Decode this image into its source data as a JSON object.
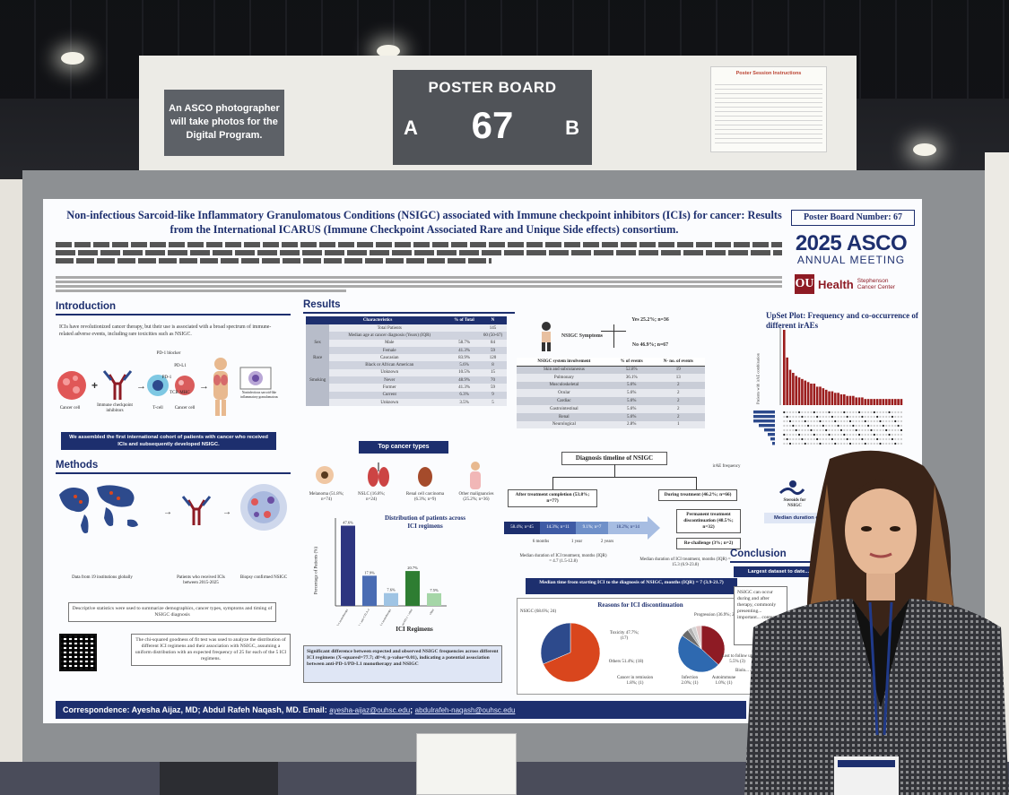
{
  "sign": {
    "photo_note": "An ASCO photographer will take photos for the Digital Program.",
    "board_title": "POSTER BOARD",
    "board_number": "67",
    "side_a": "A",
    "side_b": "B",
    "instructions_title": "Poster Session Instructions"
  },
  "poster": {
    "title": "Non-infectious Sarcoid-like Inflammatory Granulomatous Conditions (NSIGC) associated with Immune checkpoint inhibitors (ICIs) for cancer: Results from the International ICARUS (Immune Checkpoint Associated Rare and Unique Side effects) consortium.",
    "board_number_label": "Poster Board Number: 67",
    "asco_year": "2025",
    "asco_name": "ASCO",
    "asco_meeting": "ANNUAL MEETING",
    "ou_mark": "OU",
    "ou_health": "Health",
    "ou_center": "Stephenson Cancer Center",
    "intro_head": "Introduction",
    "intro_text": "ICIs have revolutionized cancer therapy, but their use is associated with a broad spectrum of immune-related adverse events, including rare toxicities such as NSIGC.",
    "intro_labels": {
      "cancer_cell": "Cancer cell",
      "icis": "Immune checkpoint inhibitors",
      "tcell": "T-cell",
      "cancer_cell2": "Cancer cell",
      "pd1_blocker": "PD-1 blocker",
      "pd1": "PD-1",
      "pdl1": "PD-L1",
      "tcr": "TCR",
      "mhc": "MHC",
      "granuloma": "Noninfectious sarcoid-like inflammatory granulomatous"
    },
    "intro_banner": "We assembled the first international cohort of patients with cancer who received ICIs and subsequently developed NSIGC.",
    "methods_head": "Methods",
    "methods_labels": {
      "data": "Data from 19 institutions globally",
      "patients": "Patients who received ICIs between 2015-2025",
      "biopsy": "Biopsy confirmed NSIGC"
    },
    "methods_desc": "Descriptive statistics were used to summarize demographics, cancer types, symptoms and timing of NSIGC diagnosis",
    "methods_chi": "The chi-squared goodness of fit test was used to analyze the distribution of different ICI regimens and their association with NSIGC, assuming a uniform distribution with an expected frequency of 25 for each of the 5 ICI regimens.",
    "results_head": "Results",
    "table1": {
      "headers": [
        "Characteristics",
        "% of Total",
        "N"
      ],
      "rows": [
        [
          "",
          "Total Patients",
          "",
          "145"
        ],
        [
          "",
          "Median age at cancer diagnosis (Years) (IQR)",
          "",
          "60 (50-67)"
        ],
        [
          "Sex",
          "Male",
          "58.7%",
          "84"
        ],
        [
          "",
          "Female",
          "41.3%",
          "59"
        ],
        [
          "Race",
          "Caucasian",
          "83.9%",
          "120"
        ],
        [
          "",
          "Black or African American",
          "5.6%",
          "8"
        ],
        [
          "",
          "Unknown",
          "10.5%",
          "15"
        ],
        [
          "Smoking",
          "Never",
          "48.9%",
          "70"
        ],
        [
          "",
          "Former",
          "41.3%",
          "59"
        ],
        [
          "",
          "Current",
          "6.3%",
          "9"
        ],
        [
          "",
          "Unknown",
          "3.5%",
          "5"
        ]
      ]
    },
    "top_cancer_head": "Top cancer types",
    "cancers": [
      "Melanoma (51.8%; n=74)",
      "NSLC (16.8%; n=24)",
      "Renal cell carcinoma (6.3%; n=9)",
      "Other malignancies (25.2%; n=36)"
    ],
    "symptoms_label": "NSIGC Symptoms",
    "symptoms_yes": "Yes 25.2%; n=36",
    "symptoms_no": "No 46.9%; n=67",
    "table2": {
      "headers": [
        "NSIGC system involvement",
        "% of events",
        "N- no. of events"
      ],
      "rows": [
        [
          "Skin and subcutaneous",
          "52.8%",
          "19"
        ],
        [
          "Pulmonary",
          "36.1%",
          "13"
        ],
        [
          "Musculoskeletal",
          "5.6%",
          "2"
        ],
        [
          "Ocular",
          "5.6%",
          "2"
        ],
        [
          "Cardiac",
          "5.6%",
          "2"
        ],
        [
          "Gastrointestinal",
          "5.6%",
          "2"
        ],
        [
          "Renal",
          "5.6%",
          "2"
        ],
        [
          "Neurological",
          "2.8%",
          "1"
        ]
      ]
    },
    "timeline_head": "Diagnosis timeline of NSIGC",
    "after_treatment": "After treatment completion (53.8%; n=77)",
    "during_treatment": "During treatment (46.2%; n=66)",
    "timeline_segments": [
      "58.4%; n=45",
      "14.3%; n=11",
      "9.1%; n=7",
      "18.2%; n=14"
    ],
    "timeline_ticks": [
      "6 months",
      "1 year",
      "2 years"
    ],
    "after_median": "Median duration of ICI treatment, months (IQR) = 4.7 (1.5-12.8)",
    "during_median": "Median duration of ICI treatment, months (IQR) = 15.3 (6.9-23.8)",
    "permanent": "Permanent treatment discontinuation (48.5%; n=32)",
    "rechallenge": "Re-challenge (3%; n=2)",
    "median_time": "Median time from starting ICI to the diagnosis of NSIGC, months (IQR) = 7 (3.9-21.7)",
    "reasons_head": "Reasons for ICI discontinuation",
    "reasons_labels": [
      "NSIGC (68.6%; 24)",
      "Progression (36.9%; 24)",
      "Toxicity 47.7%; (17)",
      "Others 51.4%; (18)",
      "Lost to follow up 5.5% (3)",
      "Infection 2.0%; (1)",
      "Autoimmune 1.0%; (1)",
      "Cancer in remission 1.8%; (1)"
    ],
    "dist_title": "Distribution of patients across ICI regimens",
    "dist_ylabel": "Percentage of Patients (%)",
    "dist_xlabel": "ICI Regimens",
    "significance": "Significant difference between expected and observed NSIGC frequencies across different ICI regimens (X-squared=77.7; df=4; p-value=0.01), indicating a potential association between anti-PD-1/PD-L1 monotherapy and NSIGC",
    "upset_title": "UpSet Plot: Frequency and co-occurrence of different irAEs",
    "upset_ylabel": "Patients with irAE combination",
    "upset_xlabel": "irAE frequency",
    "steroids": "Steroids for NSIGC",
    "steroid_median": "Median duration of steroids, months (IQR) = 1.91 (0.9-...)",
    "conclusion_head": "Conclusion",
    "conclusion_first": "Largest dataset to date...",
    "conclusion_text": "NSIGC can occur during and after therapy, commonly presenting... important... context...",
    "conclusion_trunc": "Biolo... ...",
    "footer_text": "Correspondence: Ayesha Aijaz, MD; Abdul Rafeh Naqash, MD.  Email: ",
    "footer_email1": "ayesha-aijaz@ouhsc.edu",
    "footer_sep": "; ",
    "footer_email2": "abdulrafeh-naqash@ouhsc.edu"
  },
  "chart_data": [
    {
      "type": "bar",
      "title": "Distribution of patients across ICI regimens",
      "xlabel": "ICI Regimens",
      "ylabel": "Percentage of Patients (%)",
      "categories": [
        "Anti-PD-1 monotherapy",
        "Anti-PD-1 + anti-CTLA-4",
        "Anti-PD-L1 monotherapy",
        "Anti-PD-1 + other",
        "Other"
      ],
      "values": [
        47.6,
        17.9,
        7.6,
        20.7,
        7.5
      ],
      "value_labels": [
        "47.6%",
        "17.9%",
        "7.6%",
        "20.7%",
        "7.5%"
      ],
      "colors": [
        "#2d3580",
        "#4a6cb3",
        "#9fc4e4",
        "#2e7d32",
        "#a5d6a7"
      ],
      "ylim": [
        0,
        50
      ]
    },
    {
      "type": "bar",
      "title": "UpSet Plot: Frequency and co-occurrence of different irAEs",
      "values": [
        49,
        31,
        23,
        21,
        19,
        18,
        17,
        16,
        15,
        14,
        14,
        12,
        12,
        11,
        10,
        9,
        9,
        8,
        8,
        7,
        7,
        6,
        6,
        6,
        5,
        5,
        5,
        4,
        4,
        4,
        4,
        4,
        4,
        4,
        4,
        4,
        4,
        4,
        4,
        4
      ],
      "color": "#9b1c1c"
    },
    {
      "type": "pie",
      "title": "Reasons for ICI discontinuation",
      "values": [
        68.6,
        31.4
      ],
      "colors": [
        "#d9461d",
        "#2d4a8c"
      ]
    },
    {
      "type": "pie",
      "values": [
        36.9,
        47.7,
        5.5,
        3.0,
        3.0,
        3.9
      ],
      "colors": [
        "#8e1b24",
        "#2e69b0",
        "#6a6a6a",
        "#b0b0b0",
        "#d2d2d2",
        "#e2c7c7"
      ]
    }
  ]
}
